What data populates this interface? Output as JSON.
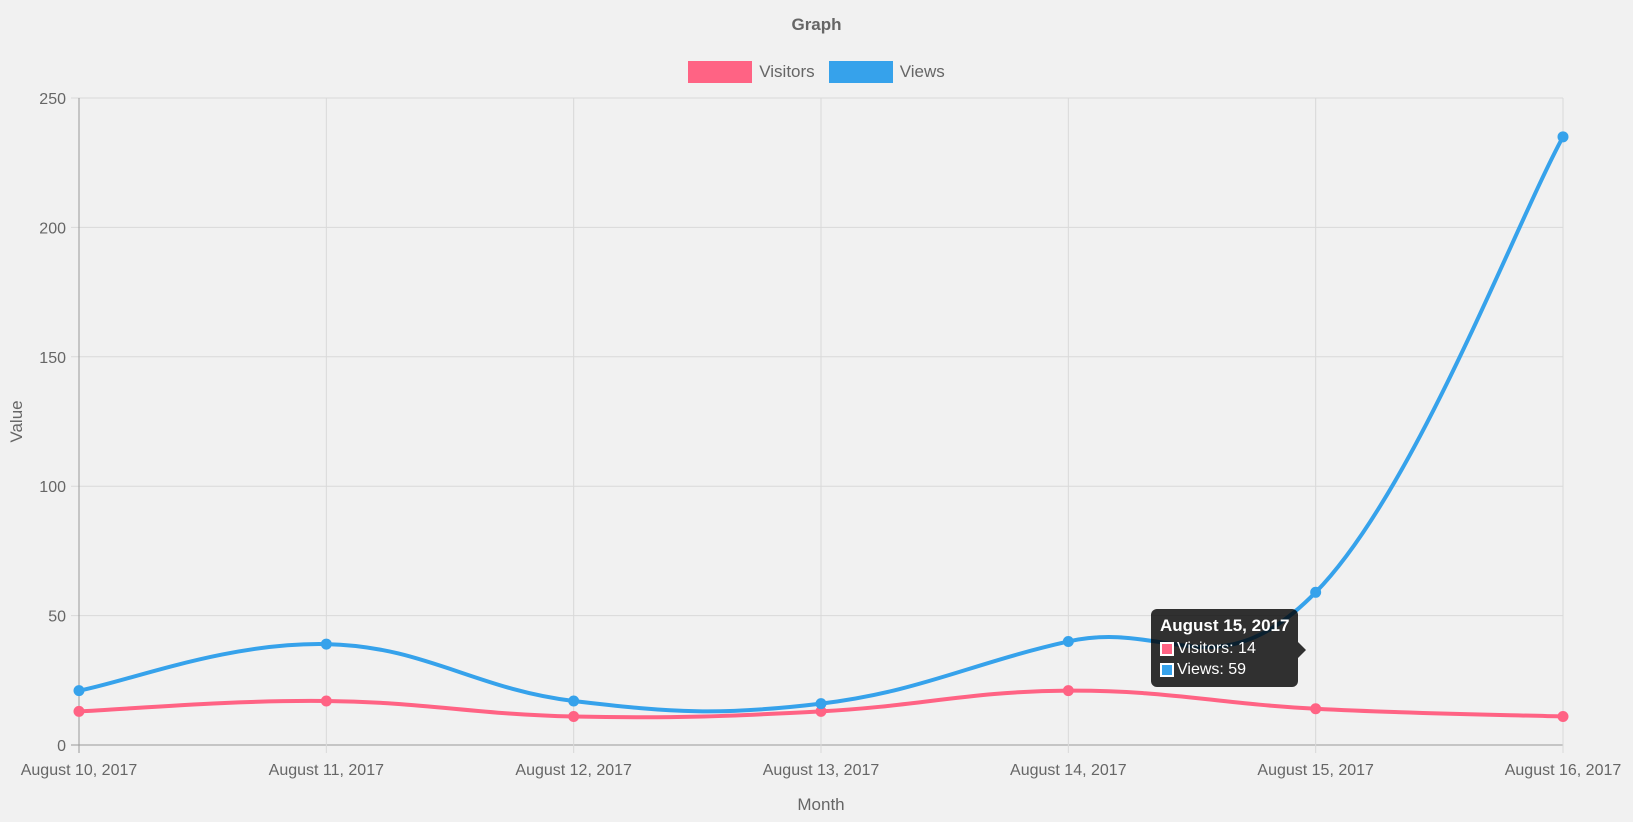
{
  "chart_data": {
    "type": "line",
    "title": "Graph",
    "xlabel": "Month",
    "ylabel": "Value",
    "categories": [
      "August 10, 2017",
      "August 11, 2017",
      "August 12, 2017",
      "August 13, 2017",
      "August 14, 2017",
      "August 15, 2017",
      "August 16, 2017"
    ],
    "ylim": [
      0,
      250
    ],
    "yticks": [
      "0",
      "50",
      "100",
      "150",
      "200",
      "250"
    ],
    "grid": true,
    "legend_position": "top",
    "series": [
      {
        "name": "Visitors",
        "color": "#ff6384",
        "values": [
          13,
          17,
          11,
          13,
          21,
          14,
          11
        ]
      },
      {
        "name": "Views",
        "color": "#36a2eb",
        "values": [
          21,
          39,
          17,
          16,
          40,
          59,
          235
        ]
      }
    ],
    "tooltip": {
      "title": "August 15, 2017",
      "rows": [
        {
          "label": "Visitors: 14",
          "color": "#ff6384"
        },
        {
          "label": "Views: 59",
          "color": "#36a2eb"
        }
      ]
    }
  }
}
